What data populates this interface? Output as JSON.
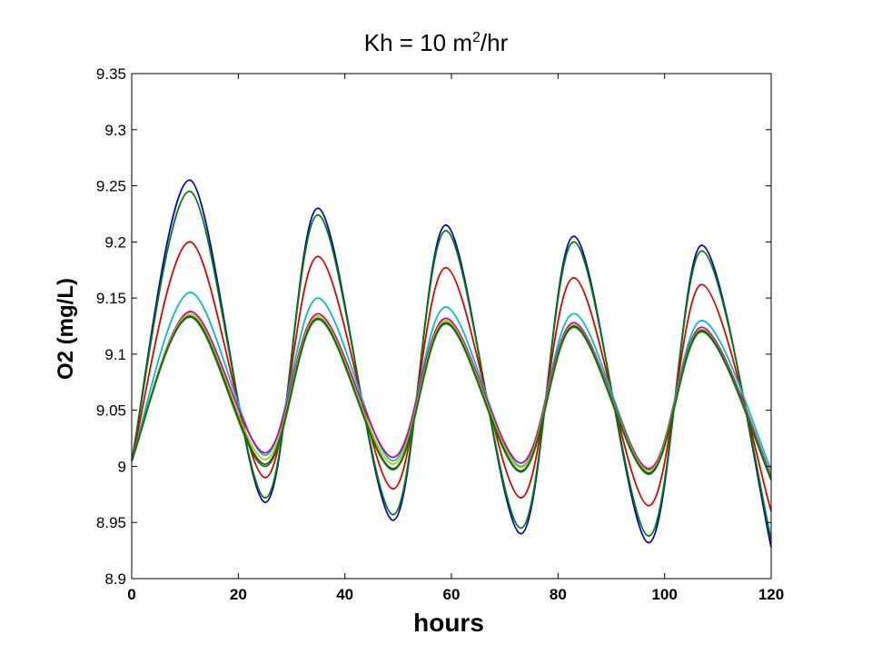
{
  "chart_data": {
    "type": "line",
    "title_main": "Kh = 10 m",
    "title_sup": "2",
    "title_tail": "/hr",
    "xlabel": "hours",
    "ylabel": "O2 (mg/L)",
    "xlim": [
      0,
      120
    ],
    "ylim": [
      8.9,
      9.35
    ],
    "xticks": [
      0,
      20,
      40,
      60,
      80,
      100,
      120
    ],
    "yticks": [
      8.9,
      8.95,
      9,
      9.05,
      9.1,
      9.15,
      9.2,
      9.25,
      9.3,
      9.35
    ],
    "xtick_labels": [
      "0",
      "20",
      "40",
      "60",
      "80",
      "100",
      "120"
    ],
    "ytick_labels": [
      "8.9",
      "8.95",
      "9",
      "9.05",
      "9.1",
      "9.15",
      "9.2",
      "9.25",
      "9.3",
      "9.35"
    ],
    "grid": false,
    "series": [
      {
        "color": "#0000cc",
        "x": [
          0,
          11,
          25,
          35,
          49,
          59,
          73,
          83,
          97,
          107,
          120
        ],
        "y": [
          9.005,
          9.255,
          8.968,
          9.23,
          8.952,
          9.215,
          8.94,
          9.205,
          8.932,
          9.197,
          8.928
        ]
      },
      {
        "color": "#007f00",
        "x": [
          0,
          11,
          25,
          35,
          49,
          59,
          73,
          83,
          97,
          107,
          120
        ],
        "y": [
          9.005,
          9.245,
          8.972,
          9.224,
          8.957,
          9.21,
          8.945,
          9.2,
          8.938,
          9.192,
          8.935
        ]
      },
      {
        "color": "#dd0000",
        "x": [
          0,
          11,
          25,
          35,
          49,
          59,
          73,
          83,
          97,
          107,
          120
        ],
        "y": [
          9.005,
          9.2,
          8.99,
          9.187,
          8.98,
          9.177,
          8.972,
          9.168,
          8.965,
          9.162,
          8.96
        ]
      },
      {
        "color": "#00bfbf",
        "x": [
          0,
          11,
          25,
          35,
          49,
          59,
          73,
          83,
          97,
          107,
          120
        ],
        "y": [
          9.005,
          9.155,
          9.01,
          9.15,
          9.005,
          9.142,
          9.0,
          9.136,
          8.997,
          9.13,
          8.997
        ]
      },
      {
        "color": "#bf00bf",
        "x": [
          0,
          11,
          25,
          35,
          49,
          59,
          73,
          83,
          97,
          107,
          120
        ],
        "y": [
          9.005,
          9.138,
          9.012,
          9.136,
          9.008,
          9.132,
          9.003,
          9.128,
          8.998,
          9.124,
          8.992
        ]
      },
      {
        "color": "#bfbf00",
        "x": [
          0,
          11,
          25,
          35,
          49,
          59,
          73,
          83,
          97,
          107,
          120
        ],
        "y": [
          9.005,
          9.136,
          9.006,
          9.134,
          9.002,
          9.13,
          8.999,
          9.126,
          8.996,
          9.122,
          8.99
        ]
      },
      {
        "color": "#404040",
        "x": [
          0,
          11,
          25,
          35,
          49,
          59,
          73,
          83,
          97,
          107,
          120
        ],
        "y": [
          9.005,
          9.134,
          9.002,
          9.132,
          8.998,
          9.128,
          8.996,
          9.125,
          8.994,
          9.121,
          8.989
        ]
      },
      {
        "color": "#007f00",
        "x": [
          0,
          11,
          25,
          35,
          49,
          59,
          73,
          83,
          97,
          107,
          120
        ],
        "y": [
          9.005,
          9.133,
          9.0,
          9.131,
          8.997,
          9.127,
          8.995,
          9.124,
          8.993,
          9.12,
          8.988
        ]
      }
    ]
  }
}
